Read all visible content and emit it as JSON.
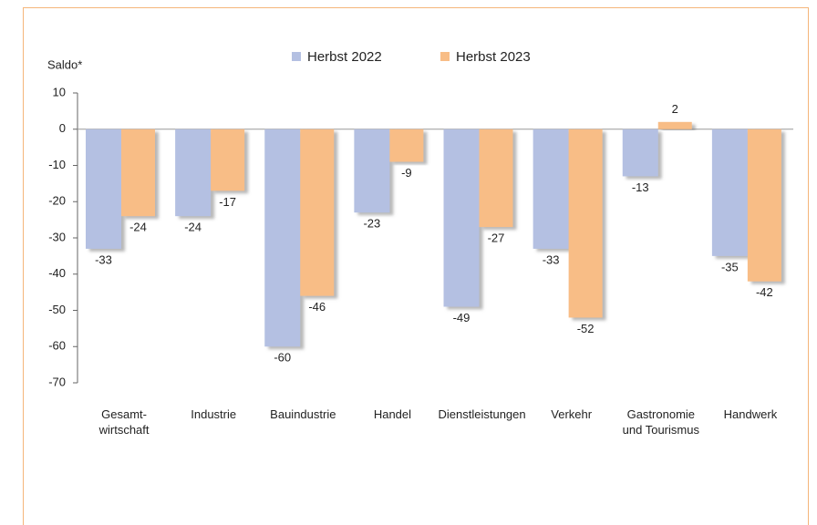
{
  "chart_data": {
    "type": "bar",
    "ylabel": "Saldo*",
    "categories": [
      "Gesamt-\nwirtschaft",
      "Industrie",
      "Bauindustrie",
      "Handel",
      "Dienstleistungen",
      "Verkehr",
      "Gastronomie\nund Tourismus",
      "Handwerk"
    ],
    "series": [
      {
        "name": "Herbst 2022",
        "color": "#b4c0e2",
        "values": [
          -33,
          -24,
          -60,
          -23,
          -49,
          -33,
          -13,
          -35
        ]
      },
      {
        "name": "Herbst 2023",
        "color": "#f8bd86",
        "values": [
          -24,
          -17,
          -46,
          -9,
          -27,
          -52,
          2,
          -42
        ]
      }
    ],
    "ylim": [
      -70,
      10
    ],
    "yticks": [
      10,
      0,
      -10,
      -20,
      -30,
      -40,
      -50,
      -60,
      -70
    ]
  }
}
